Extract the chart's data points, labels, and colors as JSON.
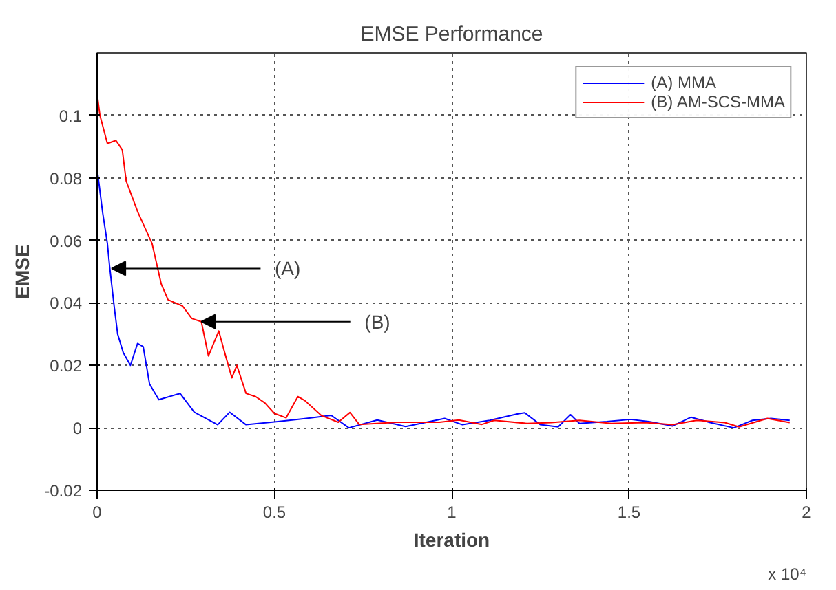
{
  "chart_data": {
    "type": "line",
    "title": "EMSE Performance",
    "xlabel": "Iteration",
    "ylabel": "EMSE",
    "xlim": [
      0,
      2
    ],
    "xticks": [
      0,
      0.5,
      1,
      1.5,
      2
    ],
    "ylim": [
      -0.02,
      0.12
    ],
    "yticks": [
      -0.02,
      0,
      0.02,
      0.04,
      0.06,
      0.08,
      0.1
    ],
    "grid": true,
    "legend": "top right",
    "line_style": "solid",
    "marker": "none",
    "annotations": [
      {
        "text": "(A)",
        "x": 0.041,
        "y": 0.051
      },
      {
        "text": "(B)",
        "x": 0.294,
        "y": 0.034
      },
      "x 10⁴"
    ],
    "series": [
      {
        "name": "(A) MMA",
        "color": "#0000ff",
        "x": [
          0,
          0.0155,
          0.029,
          0.035,
          0.048,
          0.058,
          0.074,
          0.094,
          0.114,
          0.13,
          0.148,
          0.174,
          0.234,
          0.274,
          0.34,
          0.374,
          0.42,
          0.51,
          0.59,
          0.66,
          0.71,
          0.79,
          0.87,
          0.98,
          1.03,
          1.107,
          1.187,
          1.206,
          1.25,
          1.3,
          1.335,
          1.36,
          1.437,
          1.504,
          1.556,
          1.623,
          1.675,
          1.729,
          1.795,
          1.848,
          1.9,
          1.953
        ],
        "values": [
          0.083,
          0.069,
          0.059,
          0.052,
          0.039,
          0.03,
          0.024,
          0.02,
          0.027,
          0.026,
          0.014,
          0.009,
          0.011,
          0.005,
          0.001,
          0.005,
          0.001,
          0.002,
          0.003,
          0.004,
          0.0,
          0.0025,
          0.0004,
          0.003,
          0.001,
          0.0024,
          0.0045,
          0.0048,
          0.001,
          0.0003,
          0.0042,
          0.0014,
          0.002,
          0.0027,
          0.002,
          0.0006,
          0.0034,
          0.0017,
          0.0,
          0.0024,
          0.003,
          0.0024
        ]
      },
      {
        "name": "(B) AM-SCS-MMA",
        "color": "#ff0000",
        "x": [
          0,
          0.008,
          0.029,
          0.053,
          0.071,
          0.082,
          0.115,
          0.155,
          0.181,
          0.2,
          0.241,
          0.267,
          0.294,
          0.314,
          0.343,
          0.36,
          0.38,
          0.394,
          0.42,
          0.447,
          0.473,
          0.5,
          0.533,
          0.566,
          0.586,
          0.633,
          0.68,
          0.713,
          0.739,
          0.846,
          0.965,
          1.02,
          1.085,
          1.12,
          1.213,
          1.28,
          1.36,
          1.45,
          1.545,
          1.623,
          1.69,
          1.77,
          1.81,
          1.89,
          1.953
        ],
        "values": [
          0.107,
          0.1,
          0.091,
          0.092,
          0.089,
          0.079,
          0.069,
          0.059,
          0.046,
          0.041,
          0.039,
          0.035,
          0.034,
          0.023,
          0.031,
          0.024,
          0.016,
          0.02,
          0.011,
          0.01,
          0.008,
          0.0046,
          0.0032,
          0.01,
          0.0087,
          0.0039,
          0.0018,
          0.0049,
          0.0011,
          0.0018,
          0.0018,
          0.0025,
          0.0011,
          0.0024,
          0.0014,
          0.0017,
          0.0024,
          0.0014,
          0.0017,
          0.001,
          0.0024,
          0.0017,
          0.0003,
          0.003,
          0.0017
        ]
      }
    ]
  }
}
